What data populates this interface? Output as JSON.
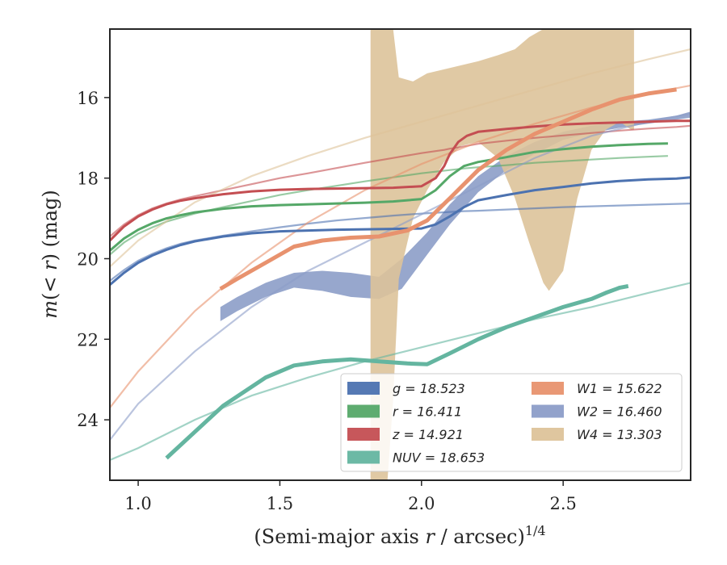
{
  "chart_data": {
    "type": "line",
    "xlabel": "(Semi-major axis r / arcsec)",
    "xlabel_var": "r",
    "xlabel_exp": "1/4",
    "ylabel": "m(< r) (mag)",
    "xlim": [
      0.9,
      2.95
    ],
    "ylim": [
      25.5,
      14.3
    ],
    "y_inverted": true,
    "xticks": [
      1.0,
      1.5,
      2.0,
      2.5
    ],
    "xtick_labels": [
      "1.0",
      "1.5",
      "2.0",
      "2.5"
    ],
    "yticks": [
      16,
      18,
      20,
      22,
      24
    ],
    "ytick_labels": [
      "16",
      "18",
      "20",
      "22",
      "24"
    ],
    "grid": false,
    "legend_position": "lower-right",
    "series": [
      {
        "name": "g = 18.523",
        "band": "g",
        "value": "18.523",
        "color": "#4c72b0",
        "x": [
          0.9,
          0.95,
          1.0,
          1.05,
          1.1,
          1.15,
          1.2,
          1.3,
          1.4,
          1.5,
          1.6,
          1.7,
          1.8,
          1.9,
          2.0,
          2.05,
          2.1,
          2.15,
          2.2,
          2.3,
          2.4,
          2.5,
          2.6,
          2.7,
          2.8,
          2.9,
          2.95
        ],
        "y": [
          20.65,
          20.35,
          20.1,
          19.92,
          19.78,
          19.66,
          19.57,
          19.45,
          19.37,
          19.32,
          19.3,
          19.28,
          19.27,
          19.26,
          19.25,
          19.15,
          18.95,
          18.72,
          18.55,
          18.42,
          18.3,
          18.22,
          18.13,
          18.07,
          18.03,
          18.01,
          17.98
        ],
        "model_y": [
          20.55,
          20.28,
          20.05,
          19.88,
          19.74,
          19.63,
          19.55,
          19.43,
          19.32,
          19.22,
          19.13,
          19.05,
          18.99,
          18.93,
          18.88,
          18.86,
          18.84,
          18.82,
          18.81,
          18.78,
          18.75,
          18.72,
          18.7,
          18.68,
          18.66,
          18.64,
          18.63
        ]
      },
      {
        "name": "r = 16.411",
        "band": "r",
        "value": "16.411",
        "color": "#55a868",
        "x": [
          0.9,
          0.95,
          1.0,
          1.05,
          1.1,
          1.15,
          1.2,
          1.3,
          1.4,
          1.5,
          1.6,
          1.7,
          1.8,
          1.9,
          2.0,
          2.05,
          2.1,
          2.15,
          2.2,
          2.3,
          2.4,
          2.5,
          2.6,
          2.7,
          2.8,
          2.87
        ],
        "y": [
          19.8,
          19.5,
          19.28,
          19.12,
          19.0,
          18.92,
          18.85,
          18.76,
          18.7,
          18.67,
          18.65,
          18.63,
          18.61,
          18.58,
          18.52,
          18.3,
          17.95,
          17.7,
          17.6,
          17.48,
          17.35,
          17.28,
          17.22,
          17.18,
          17.15,
          17.14
        ],
        "model_y": [
          19.9,
          19.6,
          19.38,
          19.22,
          19.08,
          18.98,
          18.88,
          18.72,
          18.57,
          18.42,
          18.3,
          18.19,
          18.08,
          17.98,
          17.88,
          17.84,
          17.8,
          17.76,
          17.73,
          17.68,
          17.62,
          17.58,
          17.54,
          17.5,
          17.47,
          17.45
        ]
      },
      {
        "name": "z = 14.921",
        "band": "z",
        "value": "14.921",
        "color": "#c44e52",
        "x": [
          0.9,
          0.95,
          1.0,
          1.05,
          1.1,
          1.15,
          1.2,
          1.3,
          1.4,
          1.5,
          1.6,
          1.7,
          1.8,
          1.9,
          2.0,
          2.05,
          2.08,
          2.1,
          2.13,
          2.16,
          2.2,
          2.3,
          2.4,
          2.5,
          2.6,
          2.7,
          2.8,
          2.9,
          2.95
        ],
        "y": [
          19.55,
          19.2,
          18.95,
          18.78,
          18.65,
          18.56,
          18.5,
          18.4,
          18.33,
          18.29,
          18.27,
          18.26,
          18.25,
          18.24,
          18.2,
          18.0,
          17.7,
          17.4,
          17.1,
          16.95,
          16.85,
          16.78,
          16.72,
          16.67,
          16.64,
          16.62,
          16.6,
          16.58,
          16.58
        ],
        "model_y": [
          19.45,
          19.15,
          18.92,
          18.75,
          18.63,
          18.53,
          18.45,
          18.3,
          18.15,
          18.0,
          17.88,
          17.75,
          17.62,
          17.5,
          17.38,
          17.33,
          17.3,
          17.27,
          17.24,
          17.2,
          17.15,
          17.07,
          17.0,
          16.94,
          16.88,
          16.82,
          16.77,
          16.73,
          16.7
        ]
      },
      {
        "name": "NUV = 18.653",
        "band": "NUV",
        "value": "18.653",
        "color": "#64b5a0",
        "x": [
          1.1,
          1.2,
          1.3,
          1.45,
          1.55,
          1.65,
          1.75,
          1.85,
          1.95,
          2.02,
          2.1,
          2.2,
          2.3,
          2.4,
          2.5,
          2.6,
          2.65,
          2.7,
          2.73
        ],
        "y": [
          24.95,
          24.3,
          23.65,
          22.95,
          22.65,
          22.55,
          22.5,
          22.55,
          22.6,
          22.62,
          22.35,
          22.0,
          21.7,
          21.45,
          21.2,
          21.0,
          20.85,
          20.72,
          20.68
        ],
        "model_x": [
          0.9,
          1.0,
          1.2,
          1.4,
          1.6,
          1.8,
          2.0,
          2.2,
          2.4,
          2.6,
          2.8,
          2.95
        ],
        "model_y": [
          25.0,
          24.7,
          24.0,
          23.4,
          22.95,
          22.55,
          22.2,
          21.85,
          21.5,
          21.2,
          20.85,
          20.6
        ]
      },
      {
        "name": "W1 = 15.622",
        "band": "W1",
        "value": "15.622",
        "color": "#e8926e",
        "x": [
          1.29,
          1.35,
          1.45,
          1.55,
          1.65,
          1.75,
          1.85,
          1.95,
          2.02,
          2.1,
          2.2,
          2.3,
          2.4,
          2.5,
          2.6,
          2.7,
          2.8,
          2.9
        ],
        "y": [
          20.75,
          20.5,
          20.1,
          19.7,
          19.55,
          19.48,
          19.45,
          19.3,
          19.05,
          18.5,
          17.8,
          17.3,
          16.9,
          16.6,
          16.3,
          16.05,
          15.9,
          15.8
        ],
        "model_x": [
          0.9,
          1.0,
          1.2,
          1.4,
          1.6,
          1.8,
          2.0,
          2.2,
          2.4,
          2.6,
          2.8,
          2.95
        ],
        "model_y": [
          23.7,
          22.8,
          21.3,
          20.1,
          19.1,
          18.3,
          17.65,
          17.1,
          16.65,
          16.25,
          15.9,
          15.7
        ]
      },
      {
        "name": "W2 = 16.460",
        "band": "W2",
        "value": "16.460",
        "color": "#8c9dc8",
        "x": [
          1.29,
          1.35,
          1.45,
          1.55,
          1.65,
          1.75,
          1.85,
          1.93,
          2.02,
          2.1,
          2.2,
          2.3,
          2.4,
          2.5,
          2.6,
          2.7,
          2.8,
          2.9,
          2.95
        ],
        "y_low": [
          21.2,
          20.95,
          20.6,
          20.35,
          20.3,
          20.35,
          20.45,
          20.0,
          19.35,
          18.65,
          17.95,
          17.45,
          17.1,
          16.85,
          16.7,
          16.6,
          16.55,
          16.45,
          16.35
        ],
        "y_high": [
          21.55,
          21.3,
          20.95,
          20.72,
          20.8,
          20.95,
          21.0,
          20.75,
          19.9,
          19.15,
          18.35,
          17.8,
          17.4,
          17.05,
          16.88,
          16.75,
          16.65,
          16.55,
          16.5
        ],
        "model_x": [
          0.9,
          1.0,
          1.2,
          1.4,
          1.6,
          1.8,
          2.0,
          2.2,
          2.4,
          2.6,
          2.8,
          2.95
        ],
        "model_y": [
          24.5,
          23.6,
          22.3,
          21.2,
          20.3,
          19.6,
          18.9,
          18.2,
          17.5,
          16.95,
          16.6,
          16.4
        ]
      },
      {
        "name": "W4 = 13.303",
        "band": "W4",
        "value": "13.303",
        "color": "#ddc39a",
        "x": [
          1.82,
          1.85,
          1.88,
          1.9,
          1.92,
          1.97,
          2.02,
          2.08,
          2.14,
          2.2,
          2.27,
          2.33,
          2.38,
          2.43,
          2.45,
          2.5,
          2.55,
          2.6,
          2.65,
          2.7,
          2.72,
          2.74,
          2.75
        ],
        "y_low": [
          25.5,
          25.5,
          25.5,
          23.5,
          20.5,
          19.0,
          18.3,
          17.6,
          17.2,
          17.1,
          17.5,
          18.5,
          19.6,
          20.6,
          20.8,
          20.3,
          18.5,
          17.3,
          16.8,
          16.6,
          16.7,
          16.8,
          16.8
        ],
        "y_high": [
          14.3,
          14.3,
          14.3,
          14.3,
          15.5,
          15.6,
          15.4,
          15.3,
          15.2,
          15.1,
          14.95,
          14.8,
          14.5,
          14.3,
          14.3,
          14.3,
          14.3,
          14.3,
          14.3,
          14.3,
          14.3,
          14.3,
          14.3
        ],
        "model_x": [
          0.9,
          1.0,
          1.2,
          1.4,
          1.6,
          1.8,
          2.0,
          2.2,
          2.4,
          2.6,
          2.8,
          2.95
        ],
        "model_y": [
          20.2,
          19.55,
          18.6,
          17.95,
          17.45,
          17.0,
          16.6,
          16.2,
          15.8,
          15.4,
          15.05,
          14.8
        ]
      }
    ]
  }
}
